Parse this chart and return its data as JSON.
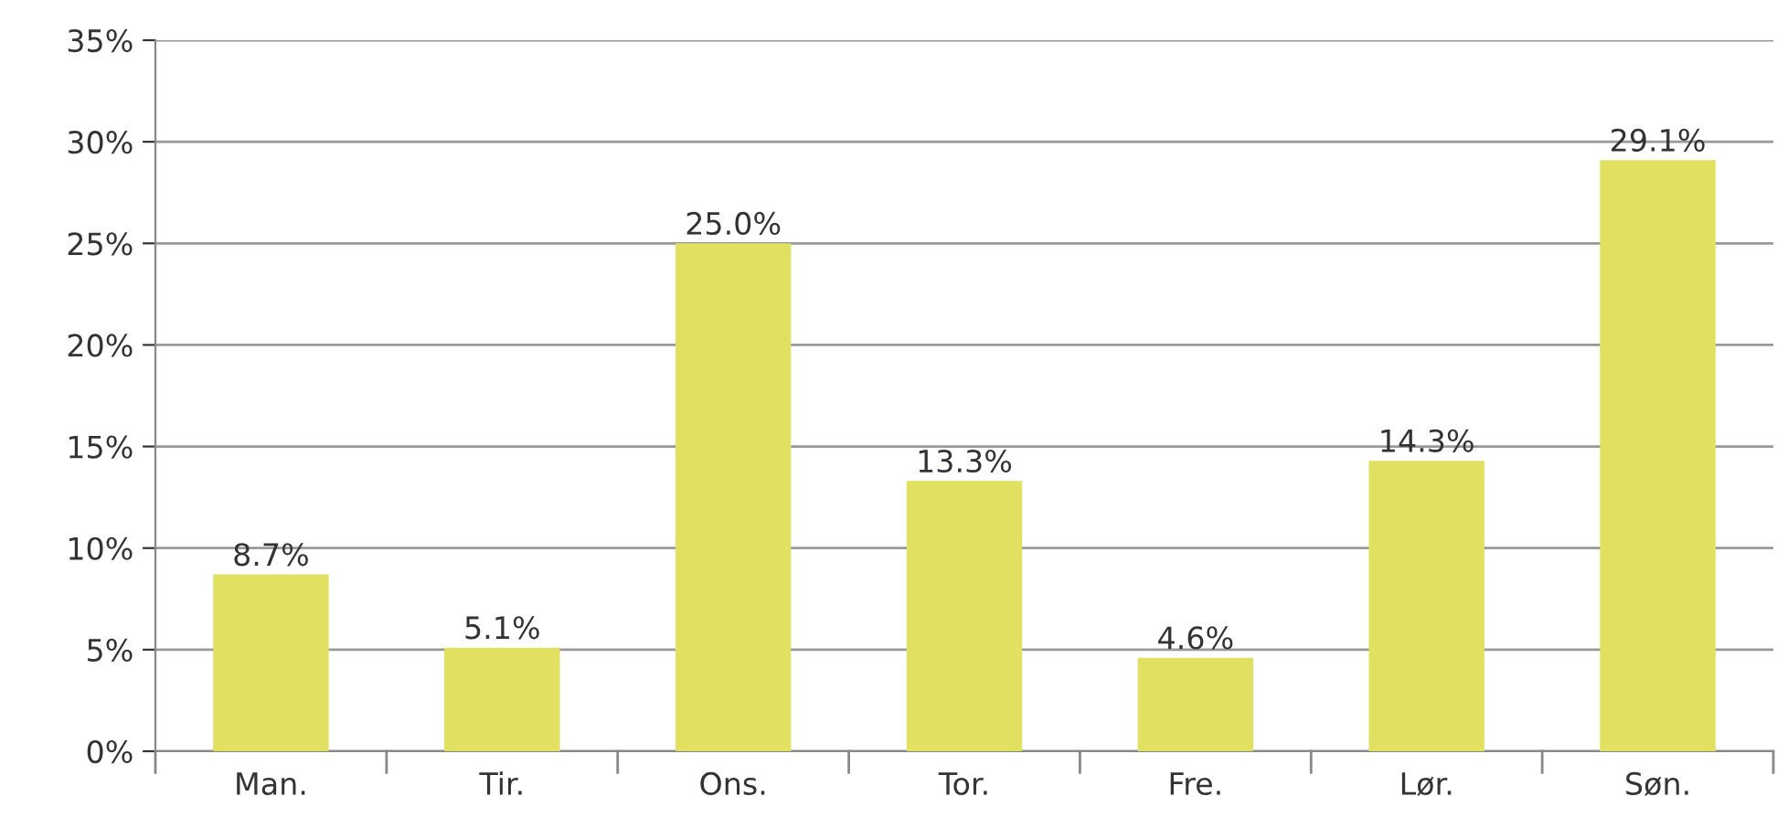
{
  "chart_data": {
    "type": "bar",
    "categories": [
      "Man.",
      "Tir.",
      "Ons.",
      "Tor.",
      "Fre.",
      "Lør.",
      "Søn."
    ],
    "values": [
      8.7,
      5.1,
      25.0,
      13.3,
      4.6,
      14.3,
      29.1
    ],
    "value_labels": [
      "8.7%",
      "5.1%",
      "25.0%",
      "13.3%",
      "4.6%",
      "14.3%",
      "29.1%"
    ],
    "color": "#e2e060",
    "ylim": [
      0,
      35
    ],
    "yticks": [
      {
        "value": 0,
        "label": "0%"
      },
      {
        "value": 5,
        "label": "5%"
      },
      {
        "value": 10,
        "label": "10%"
      },
      {
        "value": 15,
        "label": "15%"
      },
      {
        "value": 20,
        "label": "20%"
      },
      {
        "value": 25,
        "label": "25%"
      },
      {
        "value": 30,
        "label": "30%"
      },
      {
        "value": 35,
        "label": "35%"
      }
    ],
    "grid": "y"
  }
}
